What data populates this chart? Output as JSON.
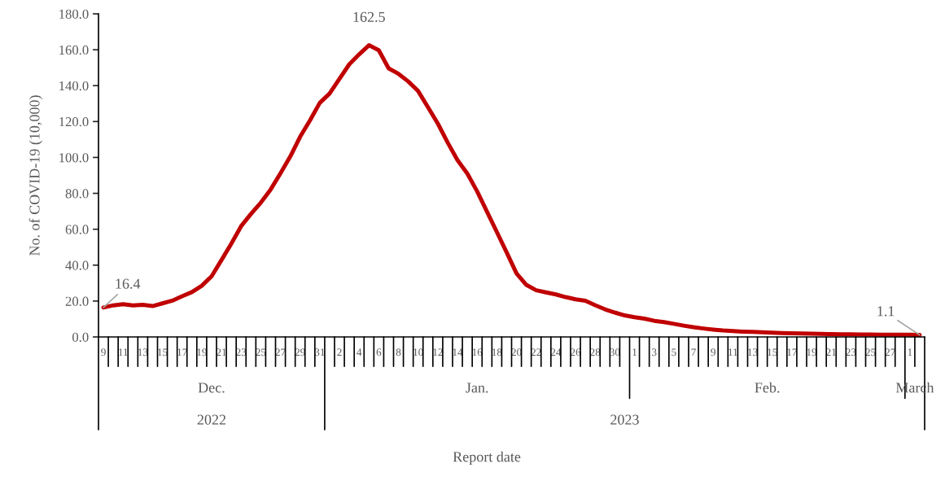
{
  "chart_data": {
    "type": "line",
    "ylabel": "No. of COVID-19 (10,000)",
    "x": [
      "2022-12-09",
      "2022-12-10",
      "2022-12-11",
      "2022-12-12",
      "2022-12-13",
      "2022-12-14",
      "2022-12-15",
      "2022-12-16",
      "2022-12-17",
      "2022-12-18",
      "2022-12-19",
      "2022-12-20",
      "2022-12-21",
      "2022-12-22",
      "2022-12-23",
      "2022-12-24",
      "2022-12-25",
      "2022-12-26",
      "2022-12-27",
      "2022-12-28",
      "2022-12-29",
      "2022-12-30",
      "2022-12-31",
      "2023-01-01",
      "2023-01-02",
      "2023-01-03",
      "2023-01-04",
      "2023-01-05",
      "2023-01-06",
      "2023-01-07",
      "2023-01-08",
      "2023-01-09",
      "2023-01-10",
      "2023-01-11",
      "2023-01-12",
      "2023-01-13",
      "2023-01-14",
      "2023-01-15",
      "2023-01-16",
      "2023-01-17",
      "2023-01-18",
      "2023-01-19",
      "2023-01-20",
      "2023-01-21",
      "2023-01-22",
      "2023-01-23",
      "2023-01-24",
      "2023-01-25",
      "2023-01-26",
      "2023-01-27",
      "2023-01-28",
      "2023-01-29",
      "2023-01-30",
      "2023-01-31",
      "2023-02-01",
      "2023-02-02",
      "2023-02-03",
      "2023-02-04",
      "2023-02-05",
      "2023-02-06",
      "2023-02-07",
      "2023-02-08",
      "2023-02-09",
      "2023-02-10",
      "2023-02-11",
      "2023-02-12",
      "2023-02-13",
      "2023-02-14",
      "2023-02-15",
      "2023-02-16",
      "2023-02-17",
      "2023-02-18",
      "2023-02-19",
      "2023-02-20",
      "2023-02-21",
      "2023-02-22",
      "2023-02-23",
      "2023-02-24",
      "2023-02-25",
      "2023-02-26",
      "2023-02-27",
      "2023-02-28",
      "2023-03-01",
      "2023-03-02"
    ],
    "series": [
      {
        "color": "#c00000",
        "values": [
          16.4,
          17.6,
          18.2,
          17.6,
          17.9,
          17.2,
          18.7,
          20.2,
          22.7,
          25.0,
          28.5,
          33.8,
          42.8,
          51.9,
          61.7,
          68.5,
          74.8,
          82.1,
          91.1,
          100.5,
          111.5,
          120.6,
          130.4,
          135.6,
          143.8,
          151.9,
          157.4,
          162.5,
          159.7,
          149.6,
          146.6,
          142.3,
          137.0,
          128.0,
          118.9,
          108.3,
          98.5,
          91.0,
          81.1,
          69.8,
          58.5,
          47.1,
          35.4,
          29.0,
          26.0,
          24.8,
          23.7,
          22.2,
          21.0,
          20.2,
          17.7,
          15.4,
          13.6,
          12.0,
          11.0,
          10.2,
          9.0,
          8.3,
          7.3,
          6.3,
          5.4,
          4.7,
          4.1,
          3.6,
          3.3,
          3.0,
          2.8,
          2.6,
          2.4,
          2.2,
          2.0,
          1.9,
          1.8,
          1.7,
          1.6,
          1.5,
          1.5,
          1.4,
          1.4,
          1.3,
          1.3,
          1.2,
          1.2,
          1.1
        ],
        "value_labels": [
          "16.4",
          null,
          null,
          null,
          null,
          null,
          null,
          null,
          null,
          null,
          null,
          null,
          null,
          null,
          null,
          null,
          null,
          null,
          null,
          null,
          null,
          null,
          null,
          null,
          null,
          null,
          null,
          "162.5",
          null,
          null,
          null,
          null,
          null,
          null,
          null,
          null,
          null,
          null,
          null,
          null,
          null,
          null,
          null,
          null,
          null,
          null,
          null,
          null,
          null,
          null,
          null,
          null,
          null,
          null,
          null,
          null,
          null,
          null,
          null,
          null,
          null,
          null,
          null,
          null,
          null,
          null,
          null,
          null,
          null,
          null,
          null,
          null,
          null,
          null,
          null,
          null,
          null,
          null,
          null,
          null,
          null,
          null,
          null,
          "1.1"
        ]
      }
    ],
    "xlim": [
      "2022-12-08T12:00",
      "2023-03-02T12:00"
    ],
    "xticks": [
      {
        "value": "2022-12-09",
        "label": "9"
      },
      {
        "value": "2022-12-11",
        "label": "11"
      },
      {
        "value": "2022-12-13",
        "label": "13"
      },
      {
        "value": "2022-12-15",
        "label": "15"
      },
      {
        "value": "2022-12-17",
        "label": "17"
      },
      {
        "value": "2022-12-19",
        "label": "19"
      },
      {
        "value": "2022-12-21",
        "label": "21"
      },
      {
        "value": "2022-12-23",
        "label": "23"
      },
      {
        "value": "2022-12-25",
        "label": "25"
      },
      {
        "value": "2022-12-27",
        "label": "27"
      },
      {
        "value": "2022-12-29",
        "label": "29"
      },
      {
        "value": "2022-12-31",
        "label": "31"
      },
      {
        "value": "2023-01-02",
        "label": "2"
      },
      {
        "value": "2023-01-04",
        "label": "4"
      },
      {
        "value": "2023-01-06",
        "label": "6"
      },
      {
        "value": "2023-01-08",
        "label": "8"
      },
      {
        "value": "2023-01-10",
        "label": "10"
      },
      {
        "value": "2023-01-12",
        "label": "12"
      },
      {
        "value": "2023-01-14",
        "label": "14"
      },
      {
        "value": "2023-01-16",
        "label": "16"
      },
      {
        "value": "2023-01-18",
        "label": "18"
      },
      {
        "value": "2023-01-20",
        "label": "20"
      },
      {
        "value": "2023-01-22",
        "label": "22"
      },
      {
        "value": "2023-01-24",
        "label": "24"
      },
      {
        "value": "2023-01-26",
        "label": "26"
      },
      {
        "value": "2023-01-28",
        "label": "28"
      },
      {
        "value": "2023-01-30",
        "label": "30"
      },
      {
        "value": "2023-02-01",
        "label": "1"
      },
      {
        "value": "2023-02-03",
        "label": "3"
      },
      {
        "value": "2023-02-05",
        "label": "5"
      },
      {
        "value": "2023-02-07",
        "label": "7"
      },
      {
        "value": "2023-02-09",
        "label": "9"
      },
      {
        "value": "2023-02-11",
        "label": "11"
      },
      {
        "value": "2023-02-13",
        "label": "13"
      },
      {
        "value": "2023-02-15",
        "label": "15"
      },
      {
        "value": "2023-02-17",
        "label": "17"
      },
      {
        "value": "2023-02-19",
        "label": "19"
      },
      {
        "value": "2023-02-21",
        "label": "21"
      },
      {
        "value": "2023-02-23",
        "label": "23"
      },
      {
        "value": "2023-02-25",
        "label": "25"
      },
      {
        "value": "2023-02-27",
        "label": "27"
      },
      {
        "value": "2023-03-01",
        "label": "1"
      }
    ],
    "ylim": [
      0,
      180
    ],
    "yticks": [
      {
        "value": 0,
        "label": "0.0"
      },
      {
        "value": 20,
        "label": "20.0"
      },
      {
        "value": 40,
        "label": "40.0"
      },
      {
        "value": 60,
        "label": "60.0"
      },
      {
        "value": 80,
        "label": "80.0"
      },
      {
        "value": 100,
        "label": "100.0"
      },
      {
        "value": 120,
        "label": "120.0"
      },
      {
        "value": 140,
        "label": "140.0"
      },
      {
        "value": 160,
        "label": "160.0"
      },
      {
        "value": 180,
        "label": "180.0"
      }
    ],
    "annotations": [
      "Dec.",
      "Jan.",
      "Feb.",
      "March",
      "2022",
      "2023",
      "Report date"
    ],
    "grid": false,
    "legend": false,
    "line_style": "solid",
    "marker": "none"
  }
}
